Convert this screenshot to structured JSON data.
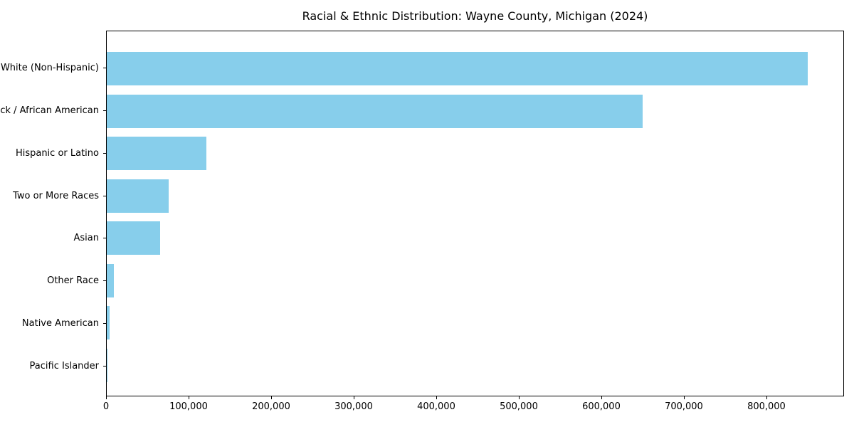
{
  "chart_data": {
    "type": "bar",
    "orientation": "horizontal",
    "title": "Racial & Ethnic Distribution: Wayne County, Michigan (2024)",
    "categories": [
      "White (Non-Hispanic)",
      "Black / African American",
      "Hispanic or Latino",
      "Two or More Races",
      "Asian",
      "Other Race",
      "Native American",
      "Pacific Islander"
    ],
    "values": [
      851000,
      650000,
      121000,
      75000,
      65000,
      9000,
      3500,
      500
    ],
    "xlabel": "",
    "ylabel": "",
    "xlim": [
      0,
      894000
    ],
    "x_ticks": [
      0,
      100000,
      200000,
      300000,
      400000,
      500000,
      600000,
      700000,
      800000
    ],
    "x_tick_labels": [
      "0",
      "100,000",
      "200,000",
      "300,000",
      "400,000",
      "500,000",
      "600,000",
      "700,000",
      "800,000"
    ],
    "bar_color": "#87CEEB",
    "axis_color": "#000000",
    "grid": false,
    "legend": null
  }
}
